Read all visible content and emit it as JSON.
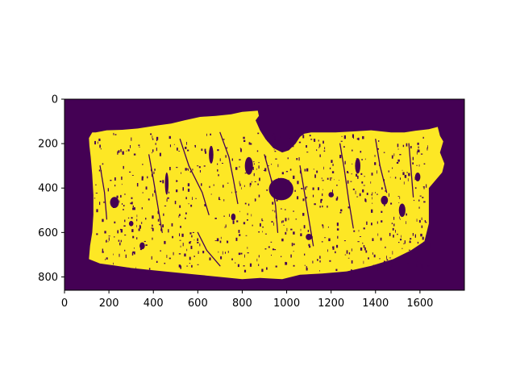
{
  "chart_data": {
    "type": "heatmap",
    "title": "",
    "xlabel": "",
    "ylabel": "",
    "description": "binary mask image displayed with viridis colormap; tissue region = 1, background = 0",
    "image_width": 1800,
    "image_height": 860,
    "xlim": [
      0,
      1800
    ],
    "ylim": [
      860,
      0
    ],
    "x_ticks": [
      0,
      200,
      400,
      600,
      800,
      1000,
      1200,
      1400,
      1600
    ],
    "y_ticks": [
      0,
      200,
      400,
      600,
      800
    ],
    "colors": {
      "background": "#440154",
      "foreground": "#fde725"
    },
    "mask_outline": [
      [
        110,
        175
      ],
      [
        125,
        150
      ],
      [
        140,
        150
      ],
      [
        190,
        140
      ],
      [
        260,
        138
      ],
      [
        330,
        132
      ],
      [
        420,
        118
      ],
      [
        480,
        110
      ],
      [
        540,
        95
      ],
      [
        610,
        80
      ],
      [
        680,
        75
      ],
      [
        750,
        68
      ],
      [
        800,
        57
      ],
      [
        870,
        52
      ],
      [
        875,
        75
      ],
      [
        860,
        95
      ],
      [
        880,
        140
      ],
      [
        905,
        180
      ],
      [
        940,
        220
      ],
      [
        980,
        240
      ],
      [
        1010,
        230
      ],
      [
        1040,
        200
      ],
      [
        1060,
        170
      ],
      [
        1080,
        155
      ],
      [
        1110,
        150
      ],
      [
        1160,
        150
      ],
      [
        1220,
        150
      ],
      [
        1300,
        145
      ],
      [
        1380,
        140
      ],
      [
        1470,
        150
      ],
      [
        1530,
        150
      ],
      [
        1580,
        142
      ],
      [
        1640,
        135
      ],
      [
        1680,
        125
      ],
      [
        1690,
        165
      ],
      [
        1705,
        190
      ],
      [
        1690,
        240
      ],
      [
        1710,
        290
      ],
      [
        1700,
        330
      ],
      [
        1640,
        400
      ],
      [
        1640,
        470
      ],
      [
        1640,
        560
      ],
      [
        1620,
        640
      ],
      [
        1560,
        680
      ],
      [
        1480,
        720
      ],
      [
        1380,
        750
      ],
      [
        1270,
        775
      ],
      [
        1160,
        785
      ],
      [
        1060,
        790
      ],
      [
        980,
        810
      ],
      [
        880,
        805
      ],
      [
        800,
        810
      ],
      [
        700,
        800
      ],
      [
        600,
        790
      ],
      [
        500,
        780
      ],
      [
        400,
        770
      ],
      [
        300,
        760
      ],
      [
        220,
        748
      ],
      [
        160,
        740
      ],
      [
        110,
        720
      ],
      [
        115,
        660
      ],
      [
        125,
        600
      ],
      [
        130,
        520
      ],
      [
        130,
        430
      ],
      [
        125,
        340
      ],
      [
        118,
        260
      ],
      [
        112,
        210
      ]
    ],
    "holes": [
      {
        "cx": 975,
        "cy": 405,
        "rx": 55,
        "ry": 50
      },
      {
        "cx": 225,
        "cy": 465,
        "rx": 20,
        "ry": 25
      },
      {
        "cx": 830,
        "cy": 300,
        "rx": 18,
        "ry": 40
      },
      {
        "cx": 1440,
        "cy": 455,
        "rx": 16,
        "ry": 20
      },
      {
        "cx": 1520,
        "cy": 500,
        "rx": 15,
        "ry": 30
      },
      {
        "cx": 660,
        "cy": 250,
        "rx": 10,
        "ry": 40
      },
      {
        "cx": 1100,
        "cy": 620,
        "rx": 14,
        "ry": 14
      },
      {
        "cx": 1320,
        "cy": 300,
        "rx": 12,
        "ry": 35
      },
      {
        "cx": 350,
        "cy": 660,
        "rx": 12,
        "ry": 16
      },
      {
        "cx": 1200,
        "cy": 430,
        "rx": 12,
        "ry": 12
      },
      {
        "cx": 760,
        "cy": 530,
        "rx": 10,
        "ry": 16
      },
      {
        "cx": 460,
        "cy": 380,
        "rx": 8,
        "ry": 50
      },
      {
        "cx": 1590,
        "cy": 350,
        "rx": 12,
        "ry": 20
      },
      {
        "cx": 300,
        "cy": 560,
        "rx": 10,
        "ry": 12
      }
    ],
    "cracks": [
      [
        [
          520,
          180
        ],
        [
          560,
          300
        ],
        [
          620,
          420
        ],
        [
          650,
          520
        ]
      ],
      [
        [
          700,
          150
        ],
        [
          740,
          260
        ],
        [
          760,
          360
        ],
        [
          780,
          470
        ]
      ],
      [
        [
          380,
          250
        ],
        [
          400,
          360
        ],
        [
          420,
          480
        ],
        [
          440,
          600
        ]
      ],
      [
        [
          1240,
          200
        ],
        [
          1260,
          320
        ],
        [
          1280,
          460
        ],
        [
          1300,
          580
        ]
      ],
      [
        [
          1400,
          180
        ],
        [
          1420,
          300
        ],
        [
          1450,
          420
        ]
      ],
      [
        [
          1550,
          200
        ],
        [
          1560,
          320
        ],
        [
          1570,
          440
        ]
      ],
      [
        [
          900,
          250
        ],
        [
          930,
          360
        ],
        [
          950,
          480
        ],
        [
          960,
          600
        ]
      ],
      [
        [
          160,
          300
        ],
        [
          180,
          420
        ],
        [
          190,
          540
        ]
      ],
      [
        [
          1060,
          300
        ],
        [
          1080,
          420
        ],
        [
          1100,
          540
        ],
        [
          1120,
          660
        ]
      ],
      [
        [
          600,
          600
        ],
        [
          640,
          680
        ],
        [
          700,
          750
        ]
      ]
    ]
  }
}
